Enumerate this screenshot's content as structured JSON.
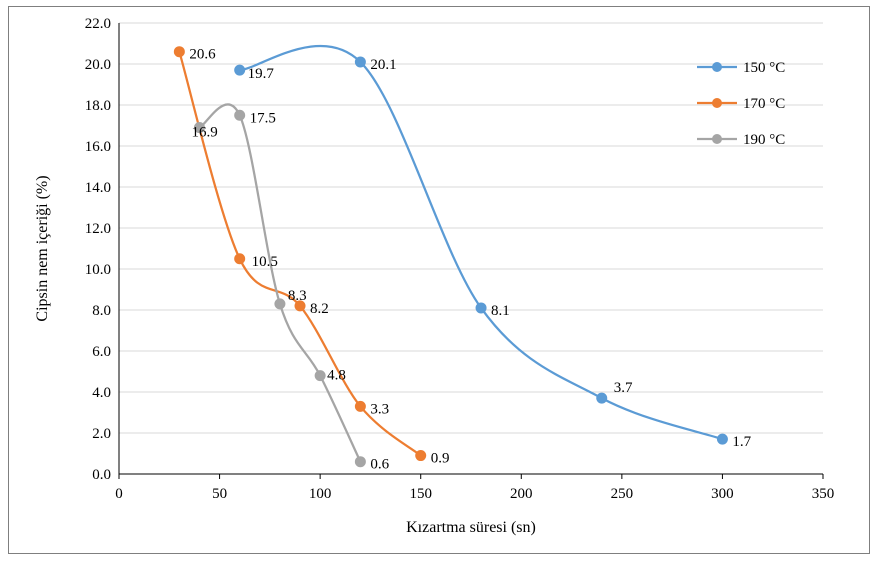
{
  "chart_data": {
    "type": "scatter",
    "title": "",
    "xlabel": "Kızartma süresi (sn)",
    "ylabel": "Cipsin nem içeriği (%)",
    "xlim": [
      0,
      350
    ],
    "ylim": [
      0,
      22
    ],
    "xticks": [
      "0",
      "50",
      "100",
      "150",
      "200",
      "250",
      "300",
      "350"
    ],
    "yticks": [
      "0.0",
      "2.0",
      "4.0",
      "6.0",
      "8.0",
      "10.0",
      "12.0",
      "14.0",
      "16.0",
      "18.0",
      "20.0",
      "22.0"
    ],
    "grid": "horizontal",
    "legend_position": "top-right",
    "smoothed_lines": true,
    "series": [
      {
        "name": "150 °C",
        "color": "#5b9bd5",
        "x": [
          60,
          120,
          180,
          240,
          300
        ],
        "y": [
          19.7,
          20.1,
          8.1,
          3.7,
          1.7
        ],
        "labels": [
          "19.7",
          "20.1",
          "8.1",
          "3.7",
          "1.7"
        ]
      },
      {
        "name": "170 °C",
        "color": "#ed7d31",
        "x": [
          30,
          60,
          90,
          120,
          150
        ],
        "y": [
          20.6,
          10.5,
          8.2,
          3.3,
          0.9
        ],
        "labels": [
          "20.6",
          "10.5",
          "8.2",
          "3.3",
          "0.9"
        ]
      },
      {
        "name": "190 °C",
        "color": "#a5a5a5",
        "x": [
          40,
          60,
          80,
          100,
          120
        ],
        "y": [
          16.9,
          17.5,
          8.3,
          4.8,
          0.6
        ],
        "labels": [
          "16.9",
          "17.5",
          "8.3",
          "4.8",
          "0.6"
        ]
      }
    ]
  }
}
